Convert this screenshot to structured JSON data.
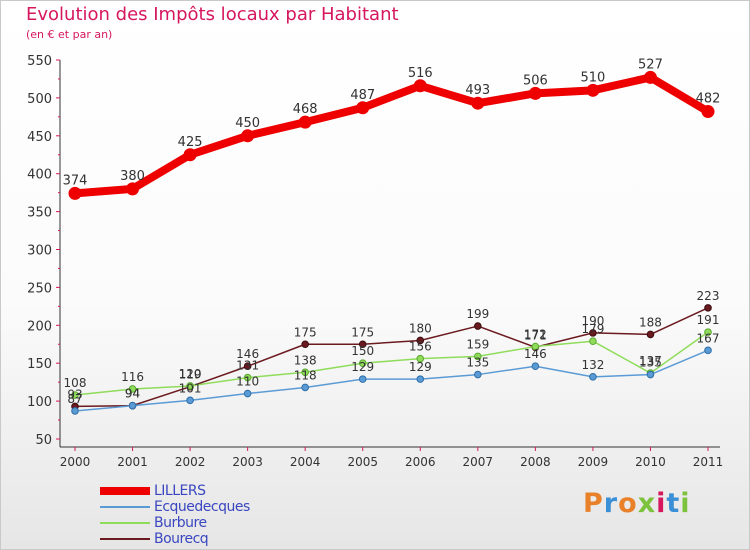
{
  "title": "Evolution des Impôts locaux par Habitant",
  "subtitle": "(en € et par an)",
  "logo": {
    "text": "Proxiti",
    "letters": [
      "P",
      "r",
      "o",
      "x",
      "i",
      "t",
      "i"
    ],
    "colors": [
      "#e8812a",
      "#3a8fd6",
      "#e8812a",
      "#7cc23d",
      "#d6175e",
      "#3a8fd6",
      "#7cc23d"
    ]
  },
  "colors": {
    "accent": "#d6175e",
    "axis": "#333333",
    "tick_major": "#d6175e"
  },
  "chart_data": {
    "type": "line",
    "title": "Evolution des Impôts locaux par Habitant",
    "subtitle": "(en € et par an)",
    "xlabel": "",
    "ylabel": "",
    "categories": [
      "2000",
      "2001",
      "2002",
      "2003",
      "2004",
      "2005",
      "2006",
      "2007",
      "2008",
      "2009",
      "2010",
      "2011"
    ],
    "ylim": [
      50,
      550
    ],
    "yticks": [
      50,
      100,
      150,
      200,
      250,
      300,
      350,
      400,
      450,
      500,
      550
    ],
    "grid": false,
    "legend_position": "bottom-left",
    "series": [
      {
        "name": "LILLERS",
        "color": "#ee0000",
        "thick": true,
        "values": [
          374,
          380,
          425,
          450,
          468,
          487,
          516,
          493,
          506,
          510,
          527,
          482
        ],
        "labels": [
          "374",
          "380",
          "425",
          "450",
          "468",
          "487",
          "516",
          "493",
          "506",
          "510",
          "527",
          "482"
        ]
      },
      {
        "name": "Ecquedecques",
        "color": "#5b9bd5",
        "thick": false,
        "values": [
          87,
          94,
          101,
          110,
          118,
          129,
          129,
          135,
          146,
          132,
          135,
          167
        ],
        "labels": [
          "87",
          "94",
          "101",
          "110",
          "118",
          "129",
          "129",
          "135",
          "146",
          "132",
          "135",
          "167"
        ]
      },
      {
        "name": "Burbure",
        "color": "#8fdc5a",
        "thick": false,
        "values": [
          108,
          116,
          120,
          131,
          138,
          150,
          156,
          159,
          172,
          179,
          137,
          191
        ],
        "labels": [
          "108",
          "116",
          "120",
          "131",
          "138",
          "150",
          "156",
          "159",
          "172",
          "179",
          "137",
          "191"
        ]
      },
      {
        "name": "Bourecq",
        "color": "#6b1a1f",
        "thick": false,
        "values": [
          93,
          94,
          119,
          146,
          175,
          175,
          180,
          199,
          171,
          190,
          188,
          223
        ],
        "labels": [
          "93",
          "94",
          "119",
          "146",
          "175",
          "175",
          "180",
          "199",
          "171",
          "190",
          "188",
          "223"
        ]
      }
    ]
  }
}
